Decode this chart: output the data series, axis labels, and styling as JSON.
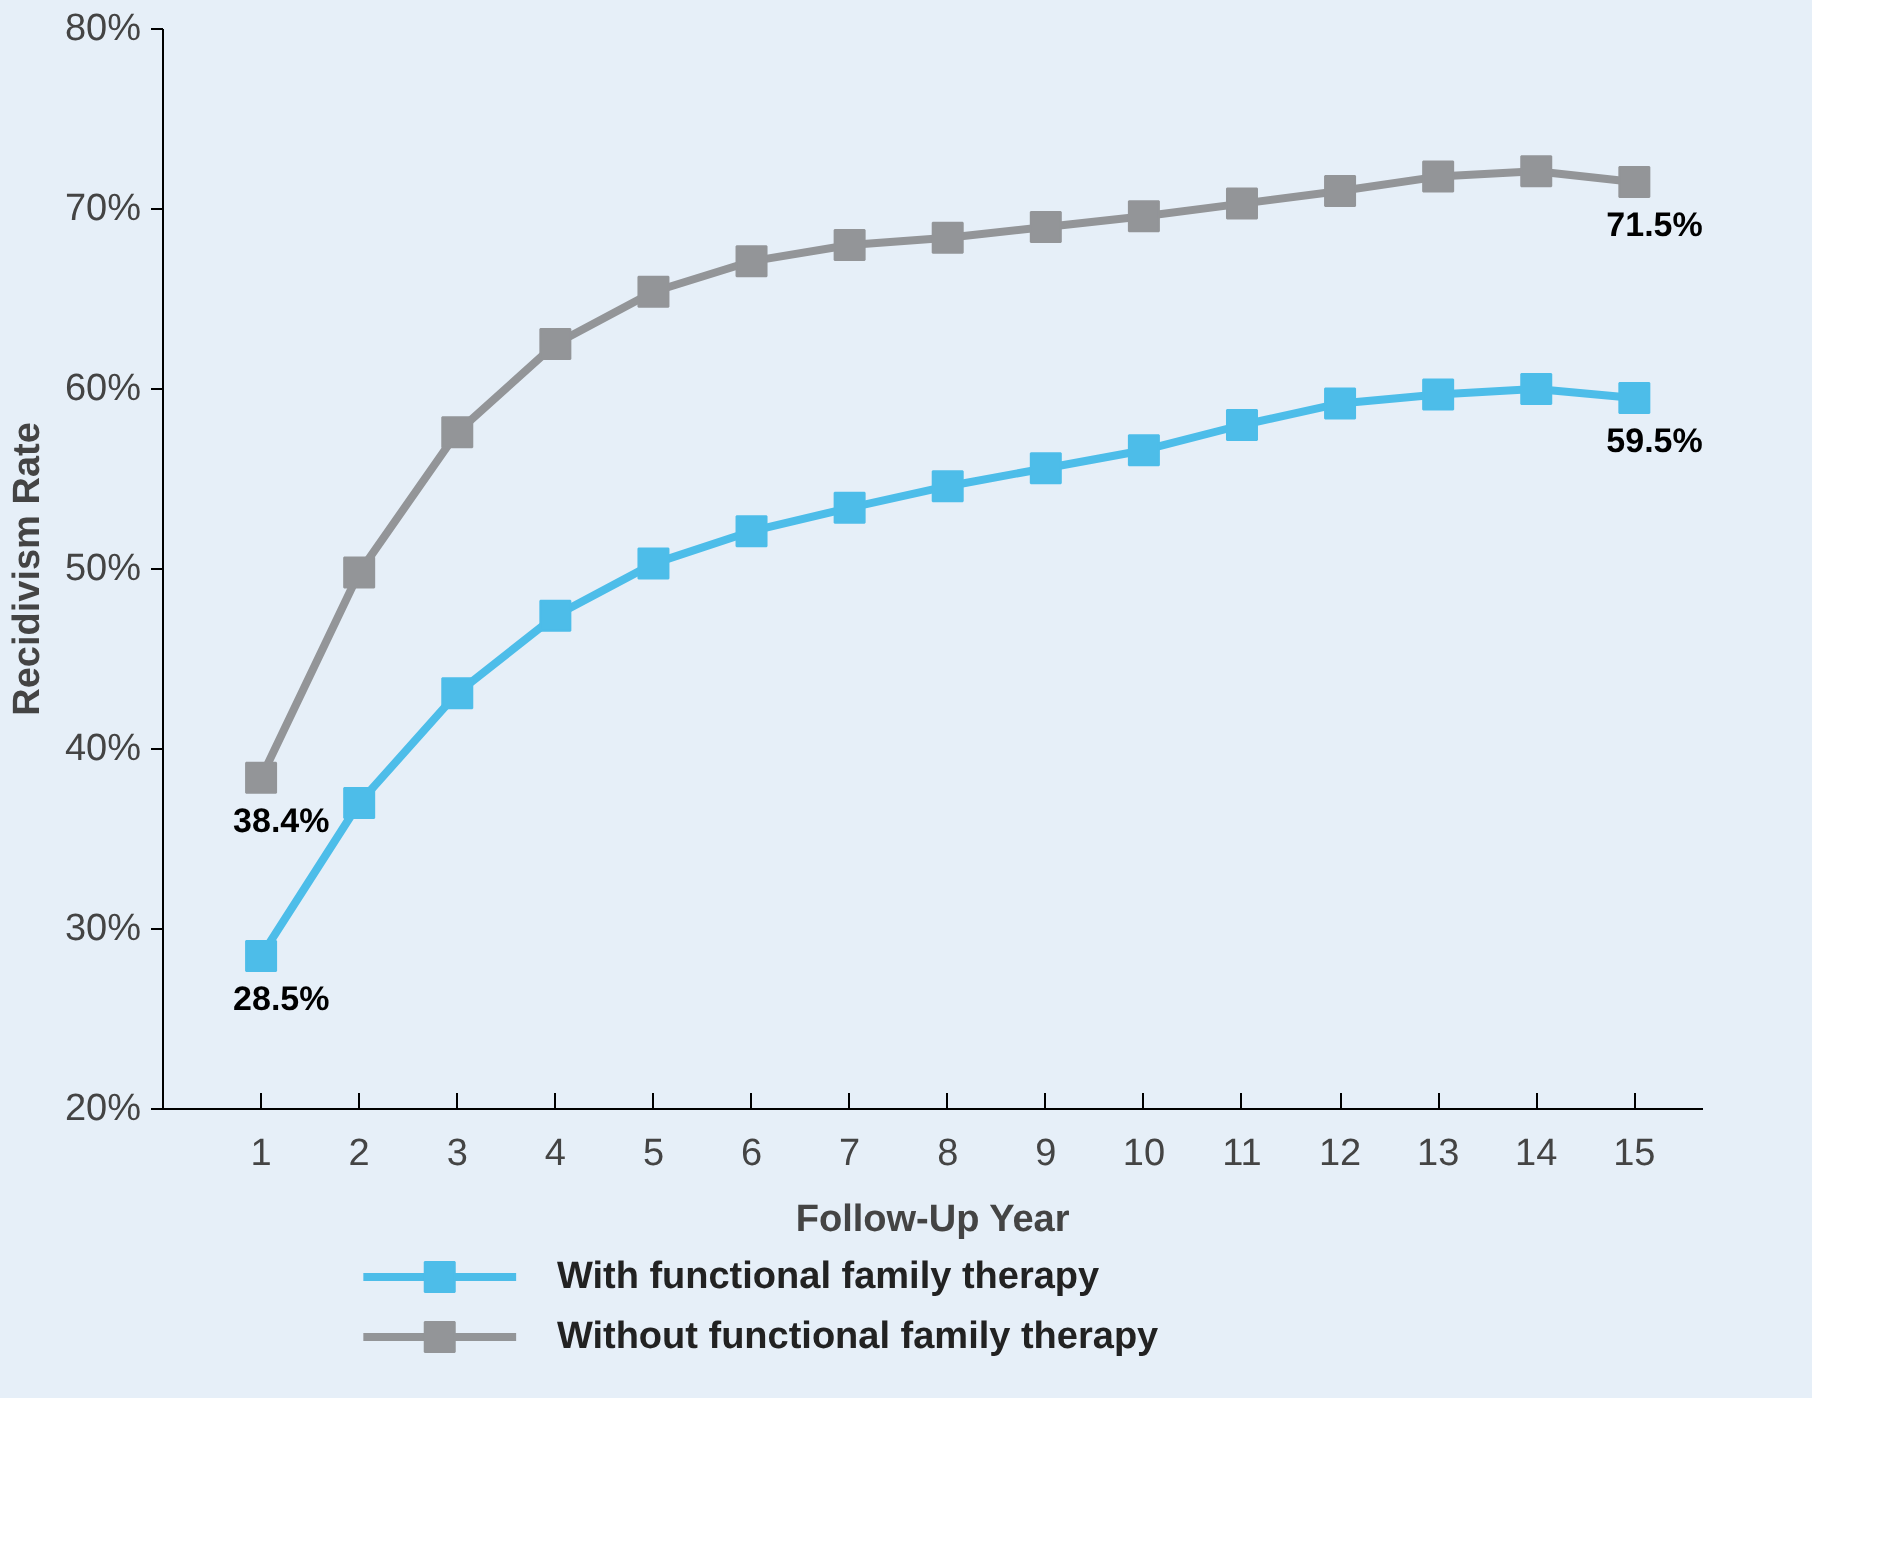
{
  "chart_data": {
    "type": "line",
    "xlabel": "Follow-Up Year",
    "ylabel": "Recidivism Rate",
    "x": [
      1,
      2,
      3,
      4,
      5,
      6,
      7,
      8,
      9,
      10,
      11,
      12,
      13,
      14,
      15
    ],
    "series": [
      {
        "name": "With functional family therapy",
        "color": "#4dbde9",
        "values": [
          28.5,
          37.0,
          43.1,
          47.4,
          50.3,
          52.1,
          53.4,
          54.6,
          55.6,
          56.6,
          58.0,
          59.2,
          59.7,
          60.0,
          59.5
        ],
        "value_labels": [
          "28.5%",
          null,
          null,
          null,
          null,
          null,
          null,
          null,
          null,
          null,
          null,
          null,
          null,
          null,
          "59.5%"
        ]
      },
      {
        "name": "Without functional family therapy",
        "color": "#939598",
        "values": [
          38.4,
          49.8,
          57.6,
          62.5,
          65.4,
          67.1,
          68.0,
          68.4,
          69.0,
          69.6,
          70.3,
          71.0,
          71.8,
          72.1,
          71.5
        ],
        "value_labels": [
          "38.4%",
          null,
          null,
          null,
          null,
          null,
          null,
          null,
          null,
          null,
          null,
          null,
          null,
          null,
          "71.5%"
        ]
      }
    ],
    "xlim": [
      0,
      15.7
    ],
    "xticks": [
      1,
      2,
      3,
      4,
      5,
      6,
      7,
      8,
      9,
      10,
      11,
      12,
      13,
      14,
      15
    ],
    "ylim": [
      20,
      80
    ],
    "yticks": [
      {
        "value": 20,
        "label": "20%"
      },
      {
        "value": 30,
        "label": "30%"
      },
      {
        "value": 40,
        "label": "40%"
      },
      {
        "value": 50,
        "label": "50%"
      },
      {
        "value": 60,
        "label": "60%"
      },
      {
        "value": 70,
        "label": "70%"
      },
      {
        "value": 80,
        "label": "80%"
      }
    ],
    "marker": "square",
    "line_style": "solid",
    "grid": false,
    "legend": "bottom"
  }
}
